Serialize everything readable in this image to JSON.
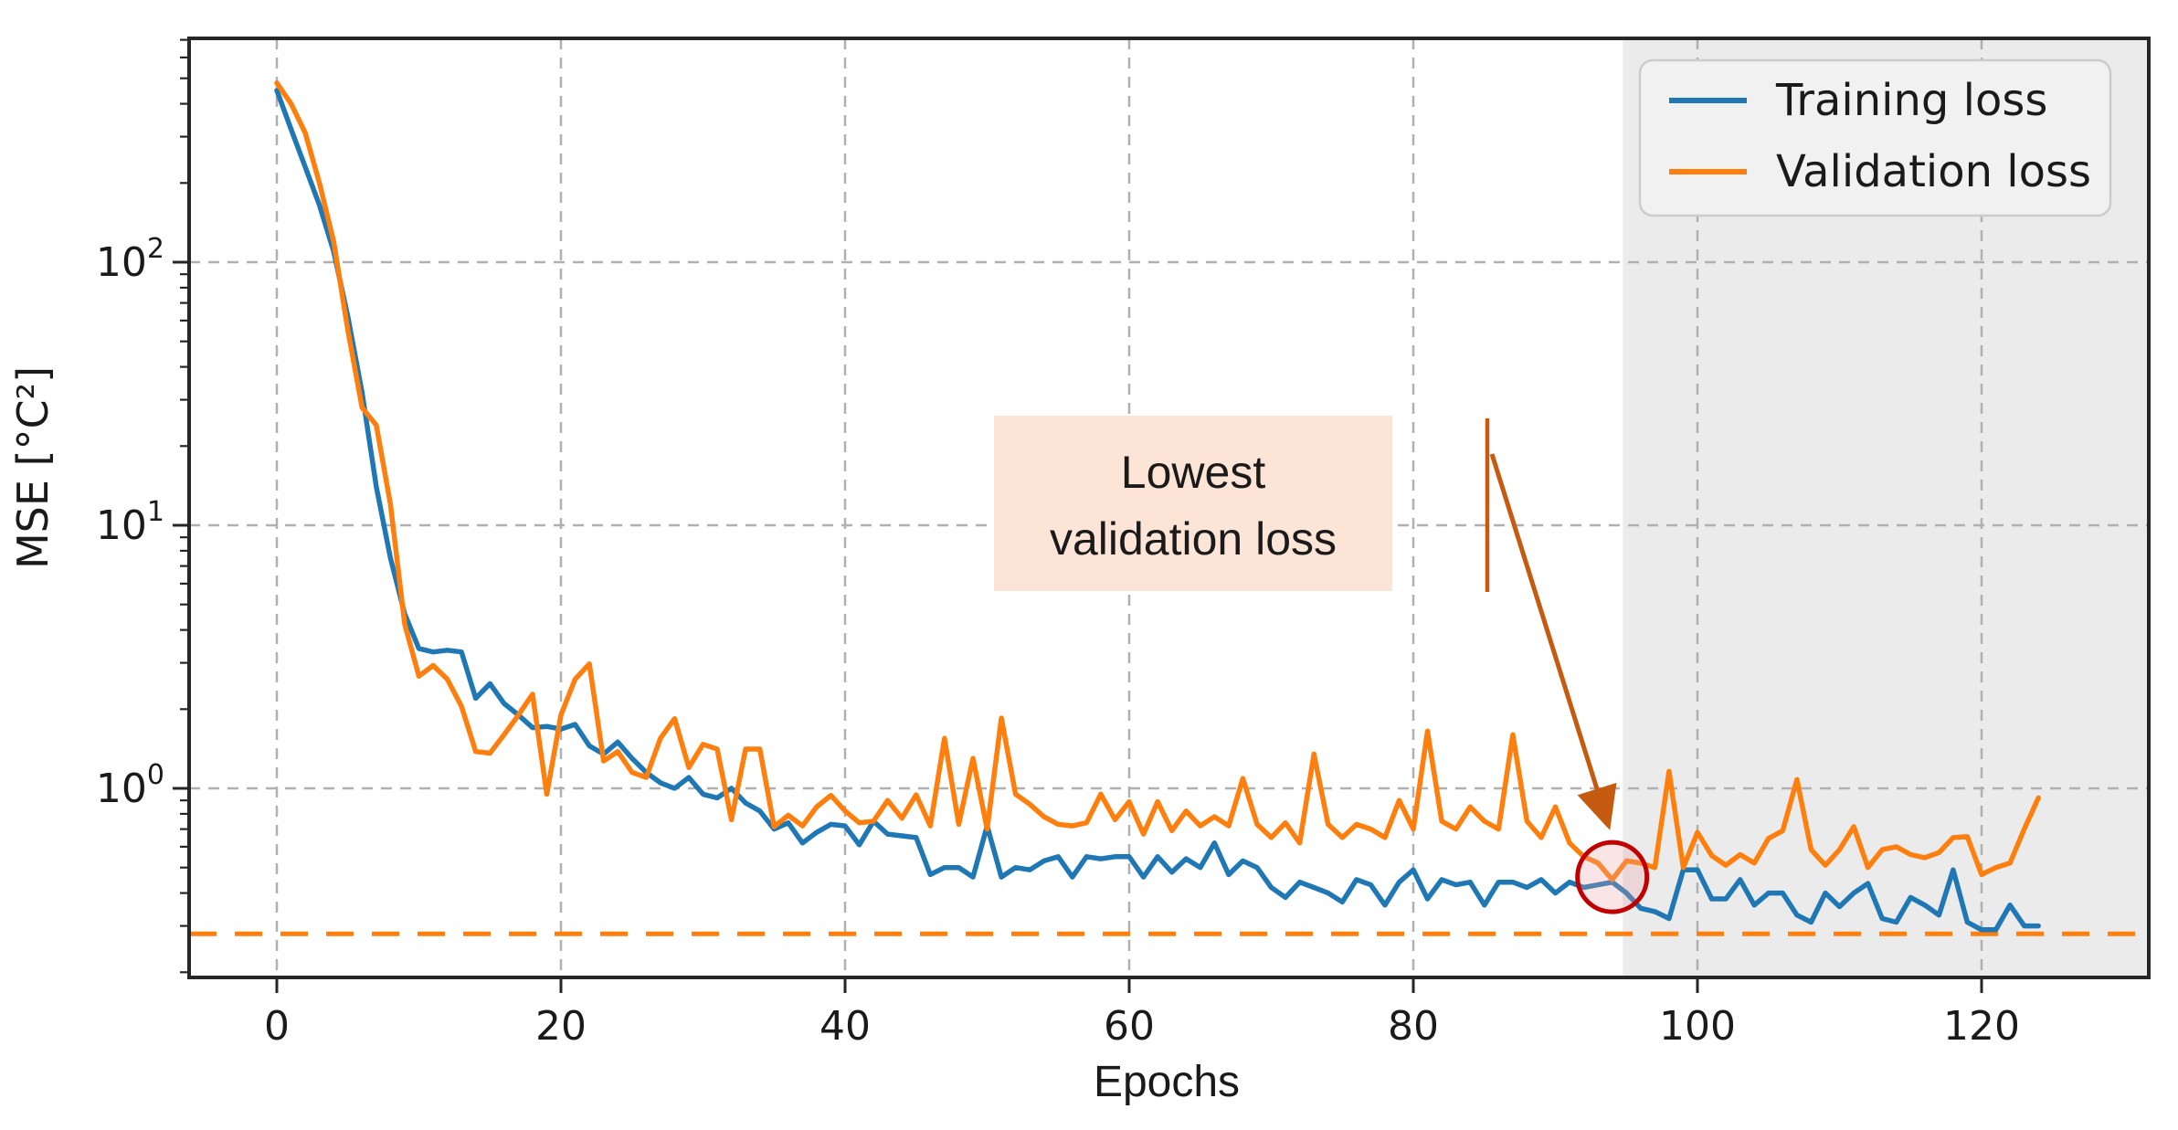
{
  "chart_data": {
    "type": "line",
    "title": "",
    "xlabel": "Epochs",
    "ylabel": "MSE [°C²]",
    "y_scale": "log",
    "grid": true,
    "legend_position": "upper right",
    "x_ticks": [
      0,
      20,
      40,
      60,
      80,
      100,
      120
    ],
    "y_tick_exponents": [
      0,
      1,
      2
    ],
    "xlim": [
      -6.2,
      131.8
    ],
    "ylim": [
      0.19,
      750
    ],
    "baseline_value": 0.28,
    "shaded_region": {
      "start_epoch": 94.75,
      "end_epoch": 131.8,
      "color": "#ebebeb"
    },
    "annotation": {
      "line1": "Lowest",
      "line2": "validation loss",
      "box_color": "#fce5d6",
      "arrow_color": "#c55a11",
      "circle_color": "#c00000",
      "circle_fill": "#e8a0a0",
      "target_epoch": 94,
      "target_value": 0.46
    },
    "colors": {
      "training": "#1f77b4",
      "validation": "#ff7f0e",
      "grid": "#b0b0b0",
      "spine": "#262626"
    },
    "epochs_start": 0,
    "series": [
      {
        "name": "Training loss",
        "color": "#1f77b4",
        "values": [
          450,
          320,
          230,
          165,
          110,
          62,
          32,
          14,
          7.5,
          4.6,
          3.4,
          3.3,
          3.35,
          3.3,
          2.2,
          2.5,
          2.1,
          1.9,
          1.7,
          1.72,
          1.68,
          1.75,
          1.45,
          1.35,
          1.5,
          1.3,
          1.15,
          1.05,
          1.0,
          1.1,
          0.95,
          0.92,
          1.0,
          0.88,
          0.82,
          0.7,
          0.74,
          0.62,
          0.68,
          0.73,
          0.72,
          0.61,
          0.75,
          0.67,
          0.66,
          0.65,
          0.47,
          0.5,
          0.5,
          0.46,
          0.72,
          0.46,
          0.5,
          0.49,
          0.53,
          0.55,
          0.46,
          0.55,
          0.54,
          0.55,
          0.55,
          0.46,
          0.55,
          0.48,
          0.54,
          0.5,
          0.62,
          0.47,
          0.53,
          0.5,
          0.42,
          0.385,
          0.44,
          0.42,
          0.4,
          0.37,
          0.45,
          0.43,
          0.36,
          0.44,
          0.49,
          0.38,
          0.45,
          0.43,
          0.44,
          0.36,
          0.44,
          0.44,
          0.42,
          0.45,
          0.4,
          0.44,
          0.42,
          0.43,
          0.44,
          0.4,
          0.35,
          0.34,
          0.32,
          0.49,
          0.49,
          0.38,
          0.38,
          0.45,
          0.36,
          0.4,
          0.4,
          0.33,
          0.31,
          0.4,
          0.355,
          0.4,
          0.435,
          0.32,
          0.31,
          0.385,
          0.36,
          0.33,
          0.49,
          0.31,
          0.29,
          0.29,
          0.36,
          0.3,
          0.3
        ]
      },
      {
        "name": "Validation loss",
        "color": "#ff7f0e",
        "values": [
          480,
          400,
          310,
          200,
          120,
          55,
          28,
          24,
          12,
          4.2,
          2.67,
          2.93,
          2.6,
          2.05,
          1.38,
          1.36,
          1.6,
          1.9,
          2.28,
          0.95,
          1.9,
          2.6,
          2.97,
          1.27,
          1.38,
          1.15,
          1.1,
          1.55,
          1.84,
          1.2,
          1.47,
          1.41,
          0.76,
          1.41,
          1.41,
          0.715,
          0.79,
          0.72,
          0.85,
          0.94,
          0.82,
          0.74,
          0.75,
          0.9,
          0.77,
          0.945,
          0.72,
          1.55,
          0.73,
          1.3,
          0.7,
          1.85,
          0.95,
          0.87,
          0.78,
          0.73,
          0.72,
          0.74,
          0.95,
          0.76,
          0.89,
          0.67,
          0.89,
          0.69,
          0.82,
          0.72,
          0.78,
          0.72,
          1.09,
          0.73,
          0.65,
          0.74,
          0.62,
          1.35,
          0.73,
          0.65,
          0.73,
          0.7,
          0.65,
          0.9,
          0.7,
          1.65,
          0.75,
          0.7,
          0.85,
          0.75,
          0.7,
          1.6,
          0.75,
          0.65,
          0.85,
          0.62,
          0.55,
          0.52,
          0.45,
          0.53,
          0.52,
          0.5,
          1.16,
          0.5,
          0.68,
          0.555,
          0.51,
          0.56,
          0.52,
          0.645,
          0.69,
          1.08,
          0.585,
          0.51,
          0.585,
          0.715,
          0.5,
          0.585,
          0.6,
          0.56,
          0.545,
          0.57,
          0.65,
          0.655,
          0.47,
          0.5,
          0.52,
          0.7,
          0.92
        ]
      }
    ]
  }
}
